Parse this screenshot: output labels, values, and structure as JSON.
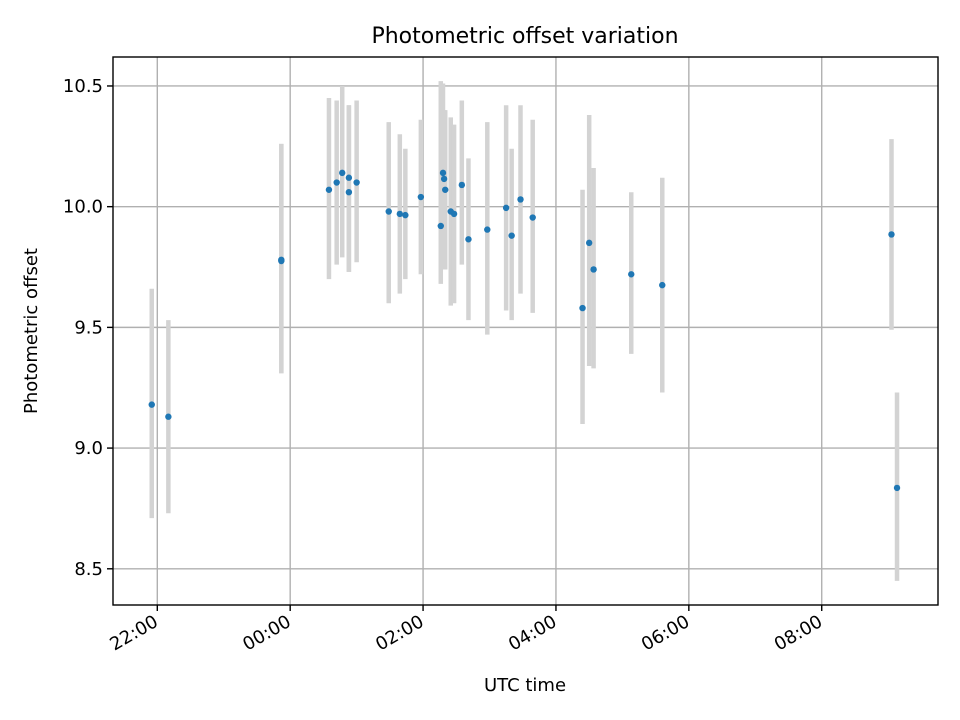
{
  "chart_data": {
    "type": "scatter",
    "title": "Photometric offset variation",
    "xlabel": "UTC time",
    "ylabel": "Photometric offset",
    "x_is_time": true,
    "x_tick_labels": [
      "22:00",
      "00:00",
      "02:00",
      "04:00",
      "06:00",
      "08:00"
    ],
    "x_ticks": [
      "22:00",
      "24:00",
      "26:00",
      "28:00",
      "30:00",
      "32:00"
    ],
    "xlim": [
      "21:20",
      "33:45"
    ],
    "ylim": [
      8.35,
      10.62
    ],
    "y_ticks": [
      8.5,
      9.0,
      9.5,
      10.0,
      10.5
    ],
    "y_tick_labels": [
      "8.5",
      "9.0",
      "9.5",
      "10.0",
      "10.5"
    ],
    "grid": true,
    "point_color": "#1f77b4",
    "errorbar_color": "#d3d3d3",
    "points": [
      {
        "x": "21:55",
        "y": 9.18,
        "lo": 8.71,
        "hi": 9.66
      },
      {
        "x": "22:10",
        "y": 9.13,
        "lo": 8.73,
        "hi": 9.53
      },
      {
        "x": "23:52",
        "y": 9.78,
        "lo": 9.31,
        "hi": 10.26
      },
      {
        "x": "23:52",
        "y": 9.775,
        "lo": 9.31,
        "hi": 10.26
      },
      {
        "x": "24:35",
        "y": 10.07,
        "lo": 9.7,
        "hi": 10.45
      },
      {
        "x": "24:42",
        "y": 10.1,
        "lo": 9.76,
        "hi": 10.44
      },
      {
        "x": "24:47",
        "y": 10.14,
        "lo": 9.79,
        "hi": 10.5
      },
      {
        "x": "24:53",
        "y": 10.06,
        "lo": 9.73,
        "hi": 10.42
      },
      {
        "x": "24:53",
        "y": 10.12,
        "lo": 9.73,
        "hi": 10.42
      },
      {
        "x": "25:00",
        "y": 10.1,
        "lo": 9.77,
        "hi": 10.44
      },
      {
        "x": "25:29",
        "y": 9.98,
        "lo": 9.6,
        "hi": 10.35
      },
      {
        "x": "25:39",
        "y": 9.97,
        "lo": 9.64,
        "hi": 10.3
      },
      {
        "x": "25:44",
        "y": 9.965,
        "lo": 9.7,
        "hi": 10.24
      },
      {
        "x": "25:58",
        "y": 10.04,
        "lo": 9.72,
        "hi": 10.36
      },
      {
        "x": "26:16",
        "y": 9.92,
        "lo": 9.68,
        "hi": 10.52
      },
      {
        "x": "26:18",
        "y": 10.14,
        "lo": 9.74,
        "hi": 10.51
      },
      {
        "x": "26:19",
        "y": 10.115,
        "lo": 9.74,
        "hi": 10.4
      },
      {
        "x": "26:20",
        "y": 10.07,
        "lo": 9.74,
        "hi": 10.4
      },
      {
        "x": "26:25",
        "y": 9.98,
        "lo": 9.59,
        "hi": 10.37
      },
      {
        "x": "26:28",
        "y": 9.97,
        "lo": 9.6,
        "hi": 10.34
      },
      {
        "x": "26:35",
        "y": 10.09,
        "lo": 9.76,
        "hi": 10.44
      },
      {
        "x": "26:41",
        "y": 9.865,
        "lo": 9.53,
        "hi": 10.2
      },
      {
        "x": "26:58",
        "y": 9.905,
        "lo": 9.47,
        "hi": 10.35
      },
      {
        "x": "27:15",
        "y": 9.995,
        "lo": 9.57,
        "hi": 10.42
      },
      {
        "x": "27:20",
        "y": 9.88,
        "lo": 9.53,
        "hi": 10.24
      },
      {
        "x": "27:28",
        "y": 10.03,
        "lo": 9.64,
        "hi": 10.42
      },
      {
        "x": "27:39",
        "y": 9.955,
        "lo": 9.56,
        "hi": 10.36
      },
      {
        "x": "28:24",
        "y": 9.58,
        "lo": 9.1,
        "hi": 10.07
      },
      {
        "x": "28:30",
        "y": 9.85,
        "lo": 9.34,
        "hi": 10.38
      },
      {
        "x": "28:34",
        "y": 9.74,
        "lo": 9.33,
        "hi": 10.16
      },
      {
        "x": "29:08",
        "y": 9.72,
        "lo": 9.39,
        "hi": 10.06
      },
      {
        "x": "29:36",
        "y": 9.675,
        "lo": 9.23,
        "hi": 10.12
      },
      {
        "x": "33:03",
        "y": 9.885,
        "lo": 9.49,
        "hi": 10.28
      },
      {
        "x": "33:08",
        "y": 8.835,
        "lo": 8.45,
        "hi": 9.23
      }
    ]
  }
}
